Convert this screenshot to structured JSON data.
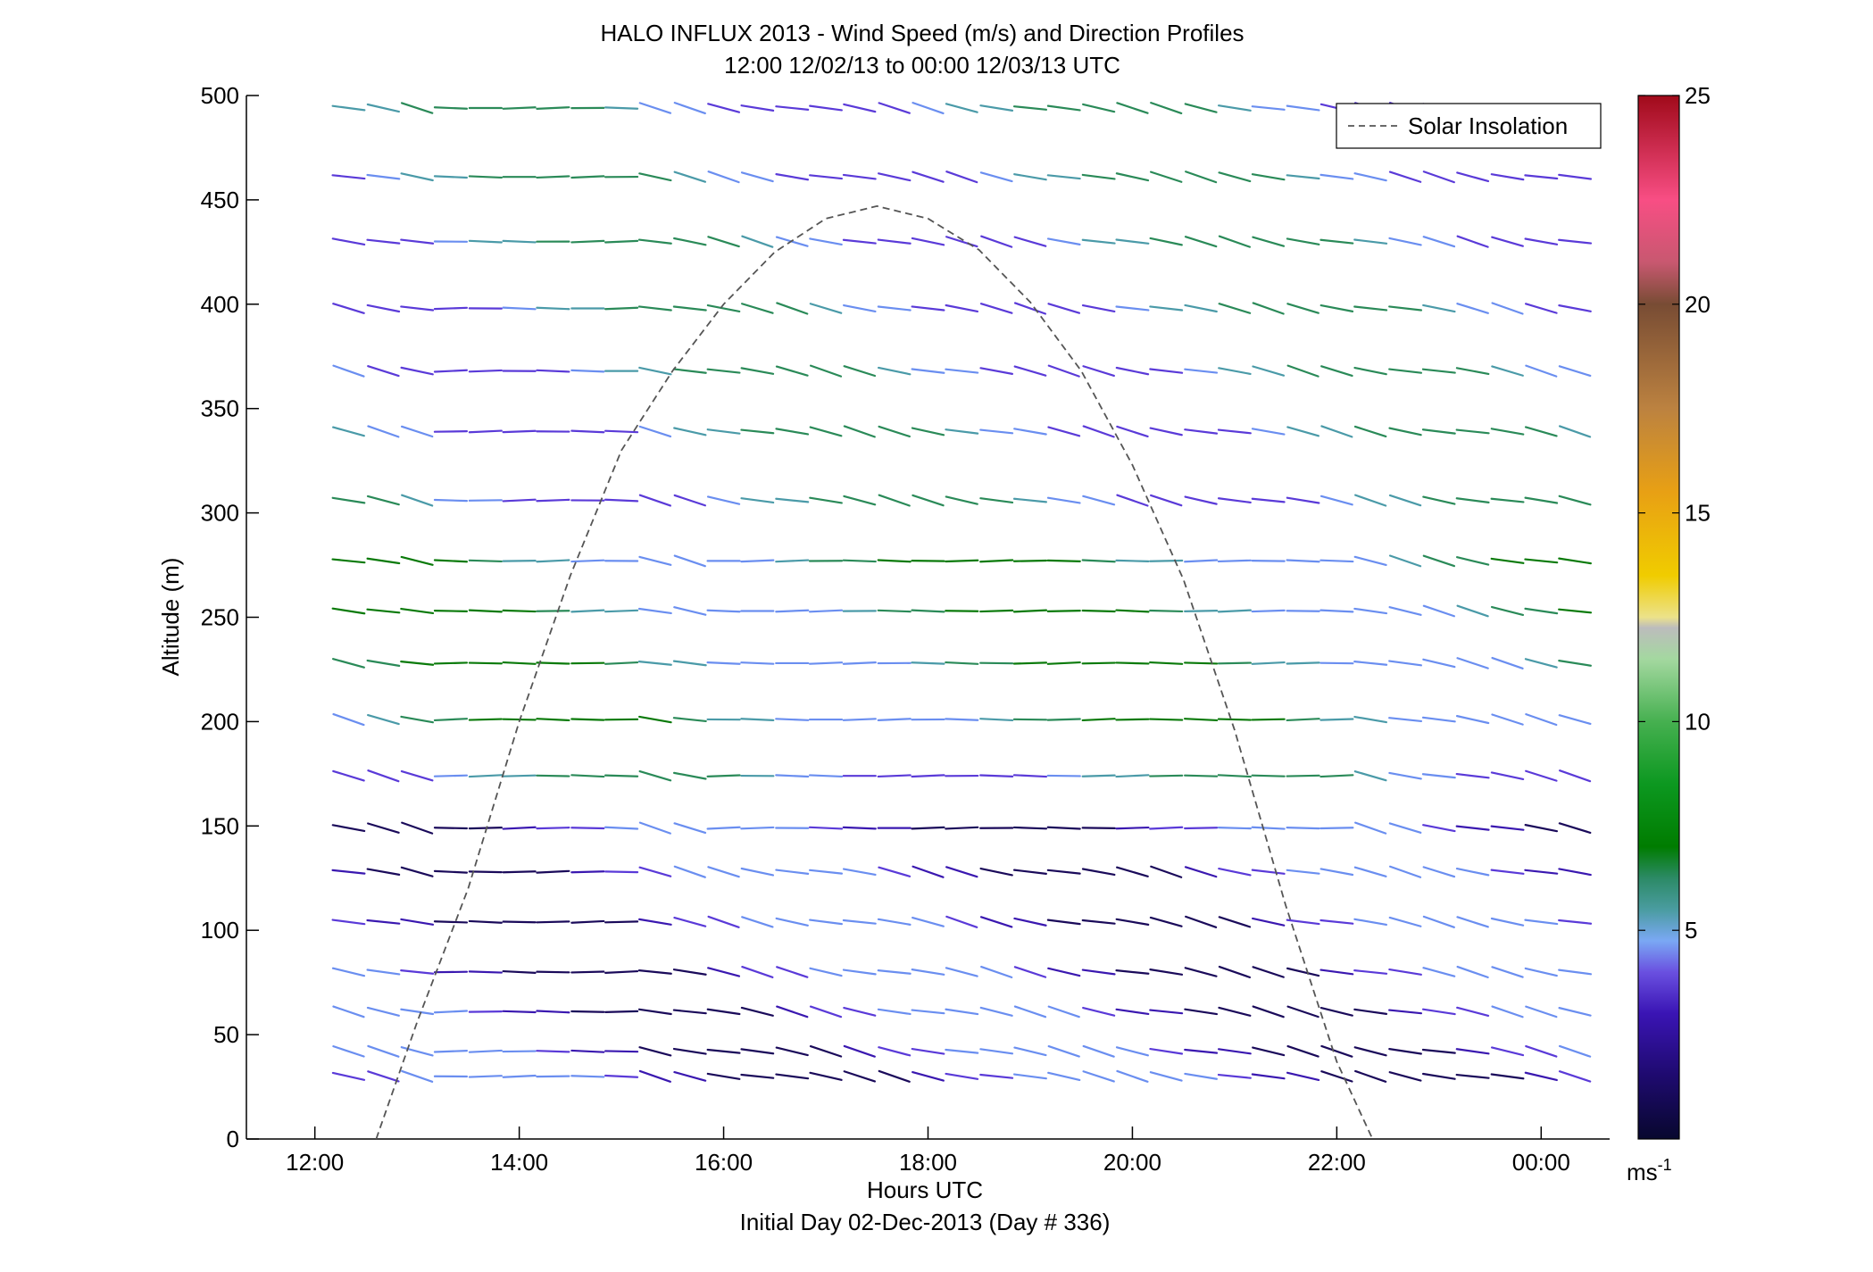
{
  "chart_data": {
    "type": "line",
    "title": "HALO INFLUX 2013 - Wind Speed (m/s) and Direction Profiles",
    "subtitle": "12:00 12/02/13 to 00:00 12/03/13  UTC",
    "xlabel": "Hours UTC",
    "xlabel2": "Initial Day 02-Dec-2013 (Day # 336)",
    "ylabel": "Altitude (m)",
    "xlim": [
      11.33,
      24.67
    ],
    "ylim": [
      0,
      500
    ],
    "x_ticks": [
      12,
      14,
      16,
      18,
      20,
      22,
      24
    ],
    "x_tick_labels": [
      "12:00",
      "14:00",
      "16:00",
      "18:00",
      "20:00",
      "22:00",
      "00:00"
    ],
    "y_ticks": [
      0,
      50,
      100,
      150,
      200,
      250,
      300,
      350,
      400,
      450,
      500
    ],
    "y_tick_labels": [
      "0",
      "50",
      "100",
      "150",
      "200",
      "250",
      "300",
      "350",
      "400",
      "450",
      "500"
    ],
    "colorbar": {
      "range": [
        0,
        25
      ],
      "ticks": [
        5,
        10,
        15,
        20,
        25
      ],
      "tick_labels": [
        "5",
        "10",
        "15",
        "20",
        "25"
      ],
      "unit_base": "ms",
      "unit_exp": "-1"
    },
    "legend": {
      "position": "top-right",
      "entries": [
        "Solar Insolation"
      ]
    },
    "series": [
      {
        "name": "Solar Insolation",
        "style": "dashed",
        "color": "#555555",
        "x": [
          12.6,
          13.0,
          13.5,
          14.0,
          14.5,
          15.0,
          15.5,
          16.0,
          16.5,
          17.0,
          17.5,
          18.0,
          18.5,
          19.0,
          19.5,
          20.0,
          20.5,
          21.0,
          21.5,
          22.0,
          22.35
        ],
        "y": [
          0,
          56,
          120,
          200,
          270,
          330,
          368,
          400,
          425,
          441,
          447,
          441,
          426,
          401,
          368,
          323,
          268,
          196,
          112,
          37,
          0
        ]
      }
    ],
    "wind_barbs": {
      "x": [
        12.33,
        12.67,
        13.0,
        13.33,
        13.67,
        14.0,
        14.33,
        14.67,
        15.0,
        15.33,
        15.67,
        16.0,
        16.33,
        16.67,
        17.0,
        17.33,
        17.67,
        18.0,
        18.33,
        18.67,
        19.0,
        19.33,
        19.67,
        20.0,
        20.33,
        20.67,
        21.0,
        21.33,
        21.67,
        22.0,
        22.33,
        22.67,
        23.0,
        23.33,
        23.67,
        24.0,
        24.33
      ],
      "altitudes": [
        30,
        42,
        61,
        80,
        104,
        128,
        149,
        174,
        201,
        228,
        253,
        277,
        306,
        339,
        368,
        398,
        430,
        461,
        494
      ],
      "color_scale": "0–25 m/s: navy → purple → light blue → teal → green → light green → gray → yellow → orange → brown → pink → dark red"
    }
  },
  "colors": {
    "axes": "#000000",
    "solar_curve": "#555555"
  }
}
